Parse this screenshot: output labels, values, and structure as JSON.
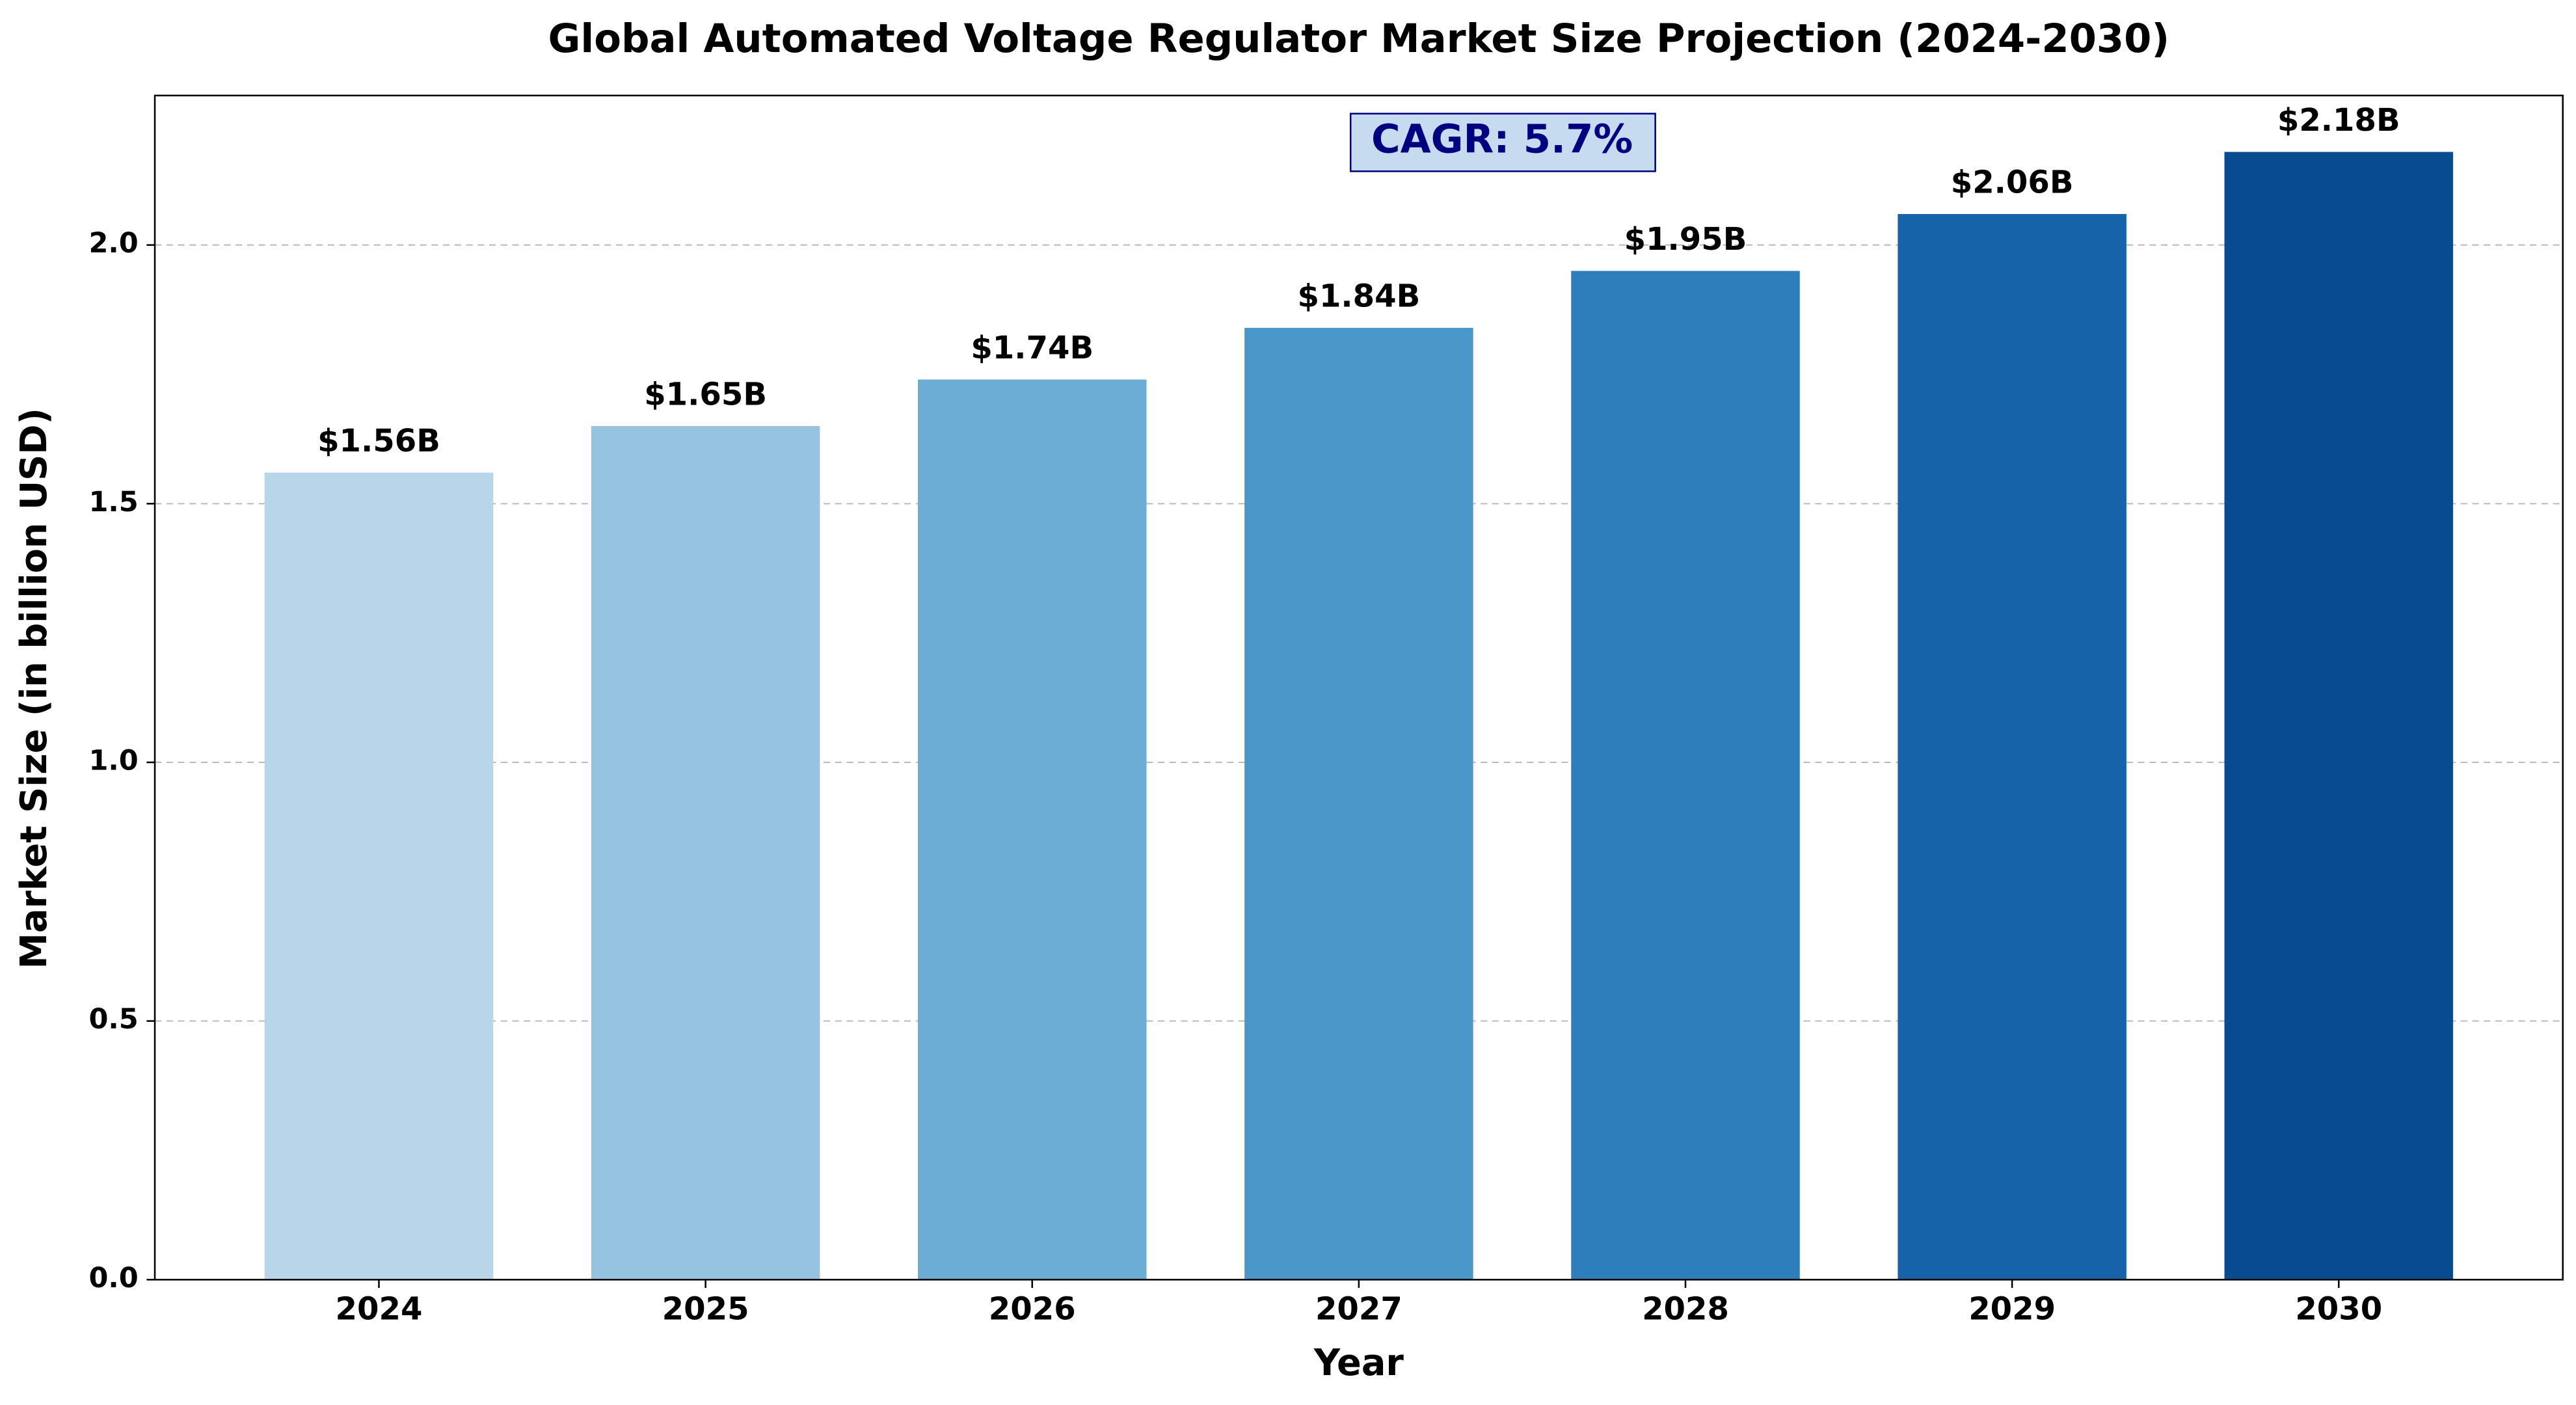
{
  "chart_data": {
    "type": "bar",
    "title": "Global Automated Voltage Regulator Market Size Projection (2024-2030)",
    "x_label": "Year",
    "y_label": "Market Size (in billion USD)",
    "annotation": "CAGR: 5.7%",
    "categories": [
      "2024",
      "2025",
      "2026",
      "2027",
      "2028",
      "2029",
      "2030"
    ],
    "values": [
      1.56,
      1.65,
      1.74,
      1.84,
      1.95,
      2.06,
      2.18
    ],
    "value_labels": [
      "$1.56B",
      "$1.65B",
      "$1.74B",
      "$1.84B",
      "$1.95B",
      "$2.06B",
      "$2.18B"
    ],
    "colors": [
      "#b9d5ea",
      "#95c3e0",
      "#6badd5",
      "#4a98c9",
      "#2f7ebc",
      "#1763a9",
      "#084b91"
    ],
    "ylim": [
      0,
      2.289
    ],
    "yticks": [
      {
        "value": 0,
        "label": "0.0"
      },
      {
        "value": 0.5,
        "label": "0.5"
      },
      {
        "value": 1,
        "label": "1.0"
      },
      {
        "value": 1.5,
        "label": "1.5"
      },
      {
        "value": 2,
        "label": "2.0"
      }
    ],
    "grid": true
  }
}
